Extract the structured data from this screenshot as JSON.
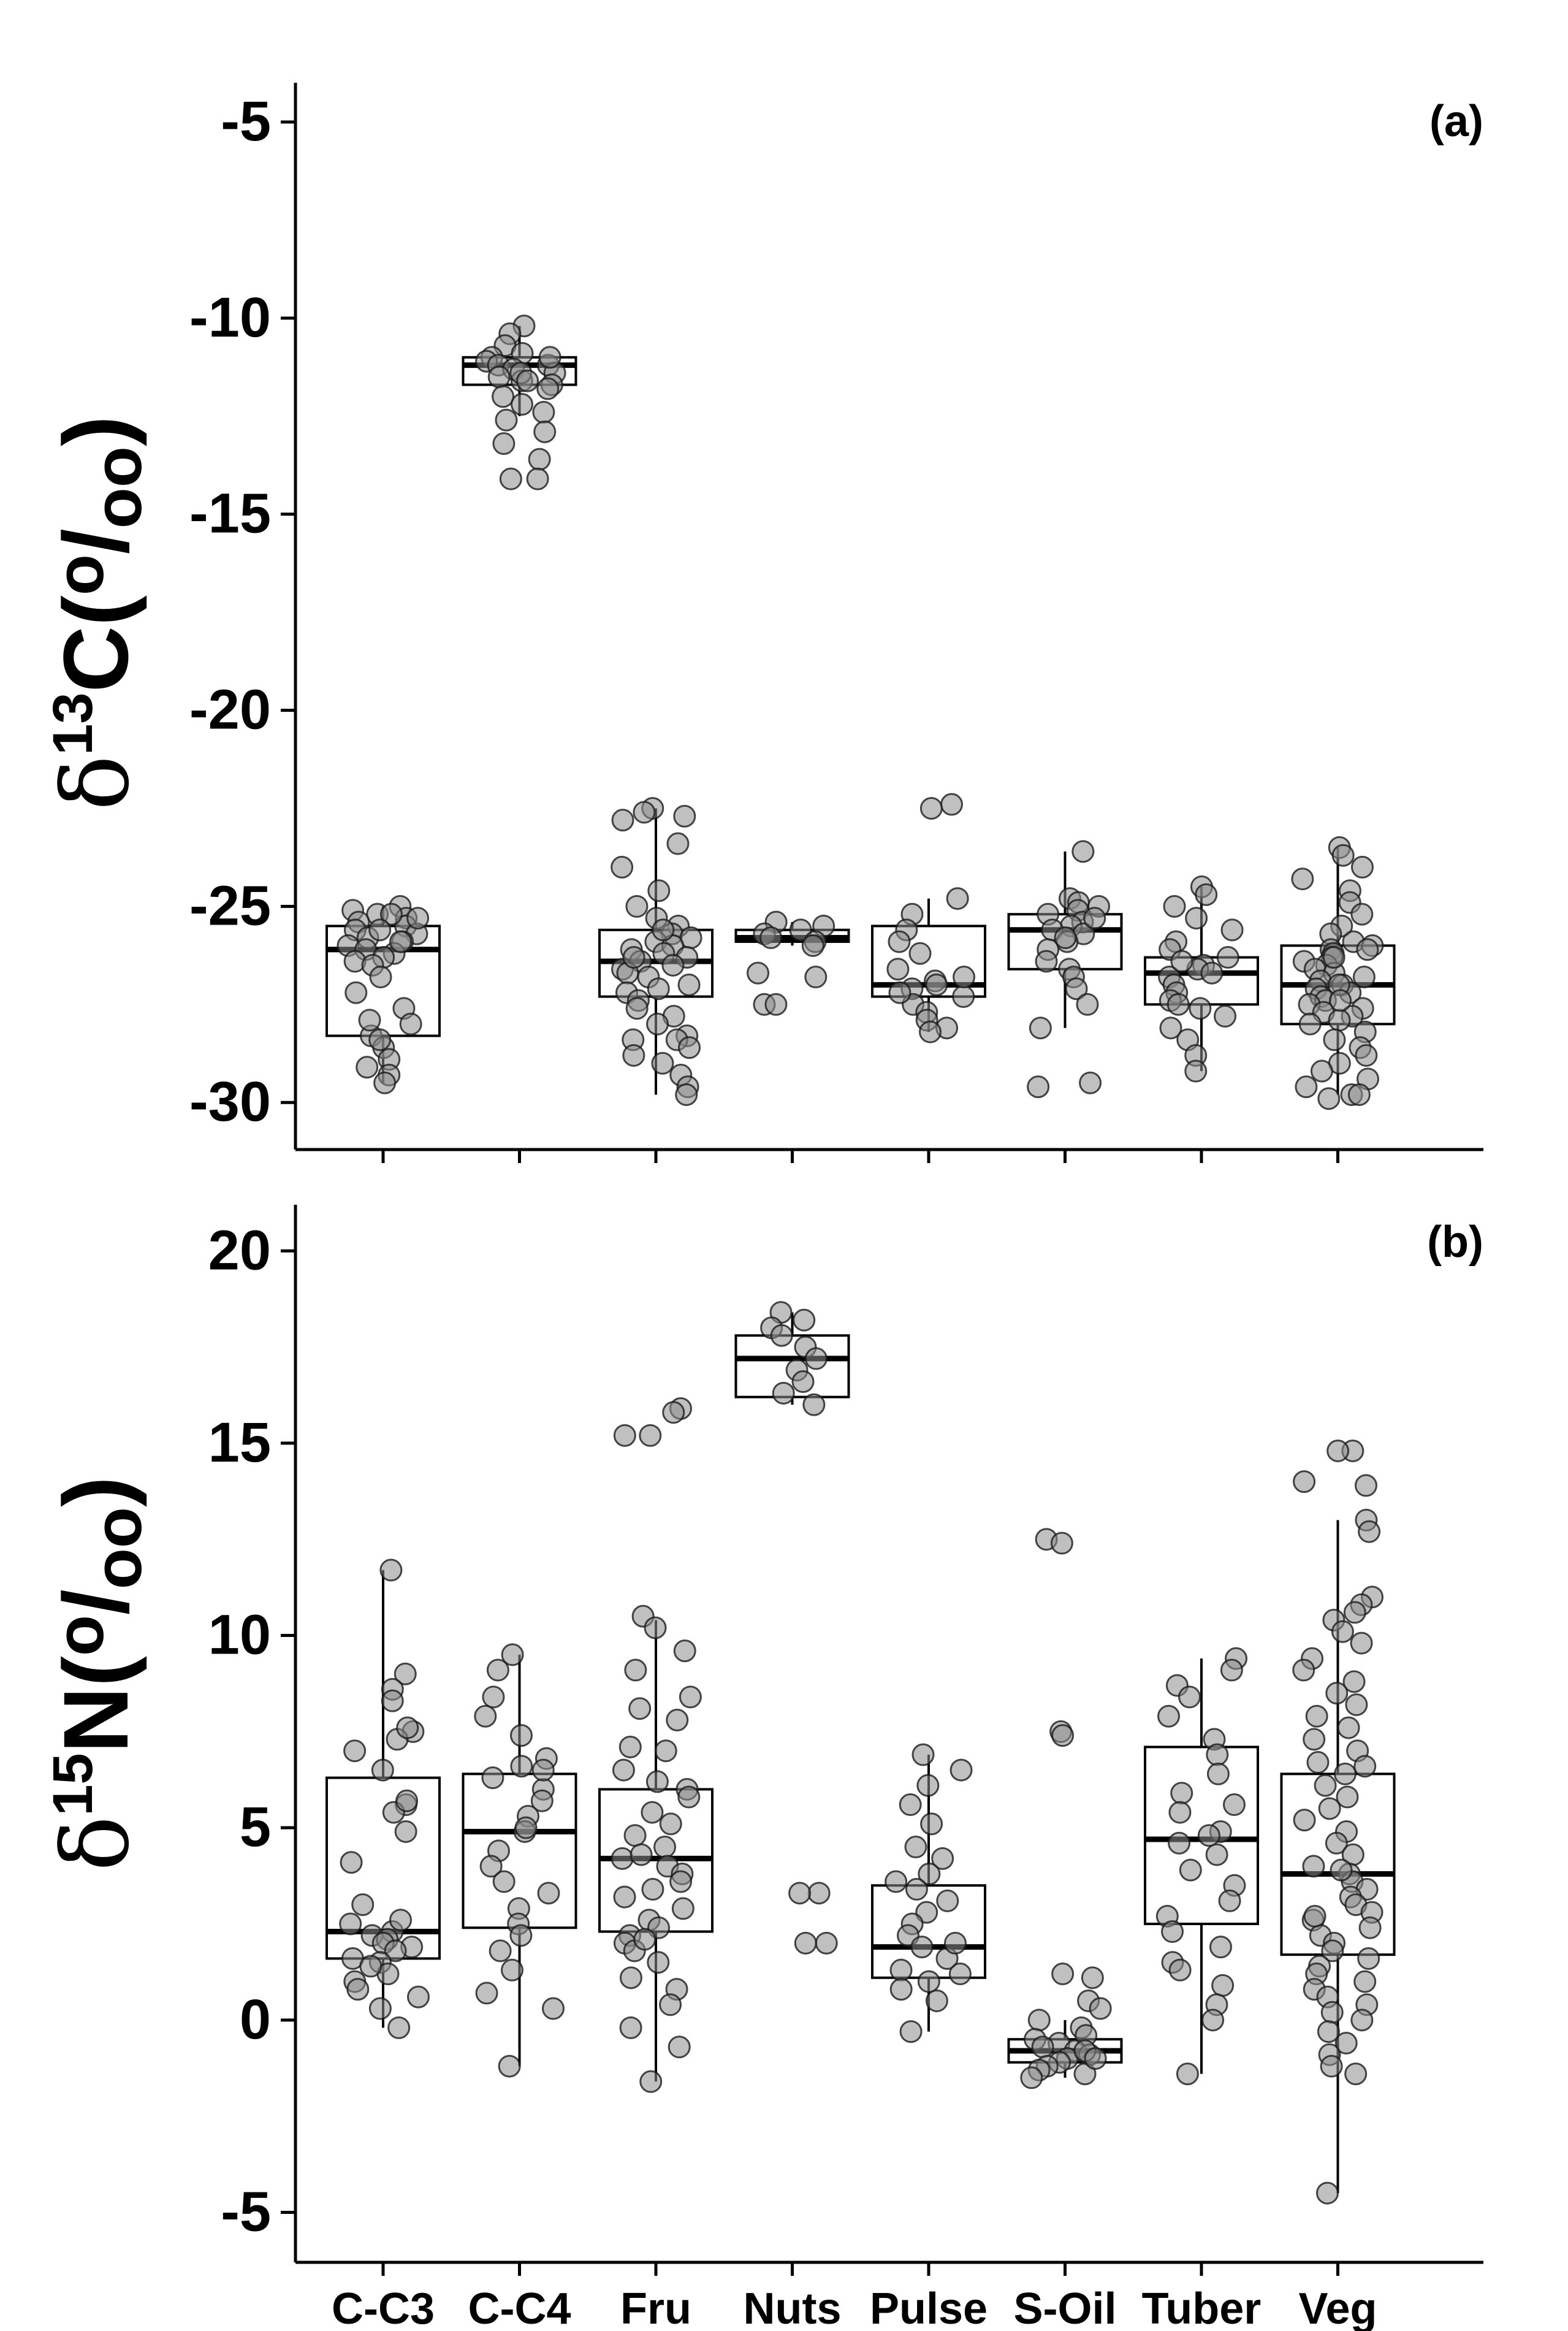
{
  "figure": {
    "categories": [
      "C-C3",
      "C-C4",
      "Fru",
      "Nuts",
      "Pulse",
      "S-Oil",
      "Tuber",
      "Veg"
    ],
    "colors": {
      "axis": "#000000",
      "box_fill": "#ffffff",
      "point_fill": "#8c8c8c",
      "point_stroke": "#1a1a1a"
    }
  },
  "chart_data": [
    {
      "type": "box",
      "panel_label": "(a)",
      "ylabel": {
        "delta": "δ",
        "sup": "13",
        "element": "C",
        "open": "(",
        "numer": "o",
        "slash": "/",
        "denom": "oo",
        "close": ")"
      },
      "xlabel": "",
      "ylim": [
        -31.2,
        -4
      ],
      "yticks": [
        -5,
        -10,
        -15,
        -20,
        -25,
        -30
      ],
      "categories": [
        "C-C3",
        "C-C4",
        "Fru",
        "Nuts",
        "Pulse",
        "S-Oil",
        "Tuber",
        "Veg"
      ],
      "boxes": [
        {
          "q1": -28.3,
          "median": -26.1,
          "q3": -25.5,
          "whisker_low": -29.5,
          "whisker_high": -25.0
        },
        {
          "q1": -11.7,
          "median": -11.2,
          "q3": -11.0,
          "whisker_low": -12.5,
          "whisker_high": -10.2
        },
        {
          "q1": -27.3,
          "median": -26.4,
          "q3": -25.6,
          "whisker_low": -29.8,
          "whisker_high": -22.5
        },
        {
          "q1": -25.9,
          "median": -25.8,
          "q3": -25.6,
          "whisker_low": -26.0,
          "whisker_high": -25.4
        },
        {
          "q1": -27.3,
          "median": -27.0,
          "q3": -25.5,
          "whisker_low": -28.2,
          "whisker_high": -24.8
        },
        {
          "q1": -26.6,
          "median": -25.6,
          "q3": -25.2,
          "whisker_low": -28.1,
          "whisker_high": -23.6
        },
        {
          "q1": -27.5,
          "median": -26.7,
          "q3": -26.3,
          "whisker_low": -29.2,
          "whisker_high": -24.5
        },
        {
          "q1": -28.0,
          "median": -27.0,
          "q3": -26.0,
          "whisker_low": -29.8,
          "whisker_high": -23.5
        }
      ],
      "points": [
        [
          -25.0,
          -25.1,
          -25.2,
          -25.3,
          -25.4,
          -25.5,
          -25.6,
          -25.7,
          -25.8,
          -25.9,
          -26.0,
          -26.1,
          -26.2,
          -26.3,
          -26.4,
          -26.5,
          -25.2,
          -25.6,
          -26.8,
          -27.2,
          -27.6,
          -28.0,
          -28.3,
          -28.6,
          -28.9,
          -29.1,
          -29.3,
          -29.5,
          -28.4,
          -27.9,
          -25.3,
          -25.9
        ],
        [
          -10.2,
          -10.4,
          -10.7,
          -10.9,
          -11.0,
          -11.1,
          -11.2,
          -11.2,
          -11.3,
          -11.4,
          -11.5,
          -11.6,
          -11.7,
          -11.8,
          -12.0,
          -12.2,
          -12.4,
          -12.6,
          -12.9,
          -13.2,
          -13.6,
          -14.1,
          -14.1,
          -11.0,
          -11.4,
          -11.6
        ],
        [
          -22.5,
          -22.6,
          -22.7,
          -22.8,
          -23.4,
          -24.0,
          -24.6,
          -25.0,
          -25.3,
          -25.5,
          -25.7,
          -25.8,
          -25.9,
          -26.0,
          -26.1,
          -26.2,
          -26.3,
          -26.4,
          -26.5,
          -26.6,
          -26.7,
          -26.8,
          -27.0,
          -27.2,
          -27.4,
          -27.6,
          -27.8,
          -28.0,
          -28.3,
          -28.4,
          -28.4,
          -28.6,
          -28.8,
          -29.0,
          -29.3,
          -29.6,
          -29.8,
          -25.6,
          -26.3,
          -27.1
        ],
        [
          -25.4,
          -25.5,
          -25.6,
          -25.7,
          -25.8,
          -25.9,
          -26.0,
          -26.7,
          -27.5,
          -27.5,
          -26.8
        ],
        [
          -22.4,
          -22.5,
          -24.8,
          -25.2,
          -25.6,
          -25.9,
          -26.2,
          -26.6,
          -26.9,
          -27.1,
          -27.3,
          -27.5,
          -27.7,
          -27.9,
          -28.1,
          -28.2,
          -26.8,
          -27.0,
          -27.2
        ],
        [
          -23.6,
          -24.8,
          -24.9,
          -25.0,
          -25.1,
          -25.2,
          -25.4,
          -25.5,
          -25.6,
          -25.7,
          -25.9,
          -26.1,
          -26.4,
          -26.6,
          -26.8,
          -27.1,
          -27.5,
          -28.1,
          -29.5,
          -29.6,
          -25.3,
          -25.8
        ],
        [
          -24.5,
          -24.7,
          -25.0,
          -25.3,
          -25.6,
          -25.9,
          -26.1,
          -26.3,
          -26.5,
          -26.6,
          -26.7,
          -26.8,
          -27.0,
          -27.2,
          -27.4,
          -27.6,
          -27.8,
          -28.1,
          -28.4,
          -28.8,
          -29.2,
          -26.4,
          -27.5
        ],
        [
          -23.5,
          -23.7,
          -24.0,
          -24.3,
          -24.6,
          -24.9,
          -25.2,
          -25.5,
          -25.7,
          -25.9,
          -26.0,
          -26.1,
          -26.2,
          -26.3,
          -26.4,
          -26.5,
          -26.6,
          -26.7,
          -26.8,
          -26.9,
          -27.0,
          -27.1,
          -27.2,
          -27.3,
          -27.4,
          -27.5,
          -27.6,
          -27.7,
          -27.8,
          -27.9,
          -28.0,
          -28.2,
          -28.4,
          -28.6,
          -28.8,
          -29.0,
          -29.2,
          -29.4,
          -29.6,
          -29.8,
          -29.8,
          -29.9,
          -26.1,
          -26.3,
          -27.0,
          -27.4
        ]
      ]
    },
    {
      "type": "box",
      "panel_label": "(b)",
      "ylabel": {
        "delta": "δ",
        "sup": "15",
        "element": "N",
        "open": "(",
        "numer": "o",
        "slash": "/",
        "denom": "oo",
        "close": ")"
      },
      "xlabel": "",
      "ylim": [
        -6.3,
        21.2
      ],
      "yticks": [
        20,
        15,
        10,
        5,
        0,
        -5
      ],
      "categories": [
        "C-C3",
        "C-C4",
        "Fru",
        "Nuts",
        "Pulse",
        "S-Oil",
        "Tuber",
        "Veg"
      ],
      "boxes": [
        {
          "q1": 1.6,
          "median": 2.3,
          "q3": 6.3,
          "whisker_low": -0.2,
          "whisker_high": 11.7
        },
        {
          "q1": 2.4,
          "median": 4.9,
          "q3": 6.4,
          "whisker_low": -1.2,
          "whisker_high": 9.5
        },
        {
          "q1": 2.3,
          "median": 4.2,
          "q3": 6.0,
          "whisker_low": -1.6,
          "whisker_high": 10.4
        },
        {
          "q1": 16.2,
          "median": 17.2,
          "q3": 17.8,
          "whisker_low": 16.0,
          "whisker_high": 18.4
        },
        {
          "q1": 1.1,
          "median": 1.9,
          "q3": 3.5,
          "whisker_low": -0.3,
          "whisker_high": 6.9
        },
        {
          "q1": -1.1,
          "median": -0.8,
          "q3": -0.5,
          "whisker_low": -1.5,
          "whisker_high": 0.0
        },
        {
          "q1": 2.5,
          "median": 4.7,
          "q3": 7.1,
          "whisker_low": -1.4,
          "whisker_high": 9.4
        },
        {
          "q1": 1.7,
          "median": 3.8,
          "q3": 6.4,
          "whisker_low": -4.5,
          "whisker_high": 13.0
        }
      ],
      "points": [
        [
          11.7,
          9.0,
          8.6,
          8.3,
          7.5,
          7.3,
          7.0,
          6.5,
          5.6,
          5.4,
          4.9,
          4.1,
          3.0,
          2.5,
          2.3,
          2.2,
          2.1,
          2.0,
          1.9,
          1.8,
          1.6,
          1.5,
          1.2,
          1.0,
          0.8,
          0.6,
          0.3,
          -0.2,
          7.6,
          5.7,
          2.6,
          1.4
        ],
        [
          9.5,
          9.1,
          8.4,
          7.9,
          7.4,
          6.8,
          6.6,
          6.3,
          6.0,
          5.7,
          5.3,
          4.9,
          4.4,
          4.0,
          3.6,
          3.3,
          2.9,
          2.5,
          2.2,
          1.8,
          1.3,
          0.7,
          0.3,
          -1.2,
          6.5,
          5.0
        ],
        [
          15.9,
          15.8,
          15.2,
          15.2,
          10.5,
          10.2,
          9.6,
          9.1,
          8.4,
          8.1,
          7.8,
          7.1,
          7.0,
          6.5,
          6.2,
          6.0,
          5.8,
          5.4,
          5.1,
          4.8,
          4.5,
          4.2,
          4.0,
          3.8,
          3.6,
          3.4,
          3.2,
          2.9,
          2.6,
          2.4,
          2.2,
          2.0,
          1.8,
          1.5,
          1.1,
          0.8,
          0.4,
          -0.2,
          -0.7,
          -1.6,
          4.3,
          2.1
        ],
        [
          18.4,
          18.2,
          18.0,
          17.8,
          17.5,
          17.2,
          16.9,
          16.6,
          16.3,
          16.0,
          3.3,
          3.3,
          2.0,
          2.0
        ],
        [
          6.9,
          6.5,
          6.1,
          5.6,
          5.1,
          4.5,
          4.2,
          3.8,
          3.4,
          3.1,
          2.8,
          2.5,
          2.2,
          1.9,
          1.6,
          1.3,
          1.0,
          0.8,
          0.5,
          -0.3,
          2.0,
          1.2,
          3.6
        ],
        [
          12.5,
          12.4,
          7.5,
          7.4,
          1.2,
          1.1,
          0.5,
          0.3,
          0.0,
          -0.2,
          -0.4,
          -0.5,
          -0.6,
          -0.7,
          -0.8,
          -0.9,
          -1.0,
          -1.1,
          -1.2,
          -1.3,
          -1.4,
          -1.5,
          -0.8,
          -1.0
        ],
        [
          9.4,
          9.1,
          8.7,
          8.4,
          7.9,
          7.3,
          6.9,
          6.4,
          5.9,
          5.4,
          4.9,
          4.6,
          4.3,
          3.9,
          3.5,
          3.1,
          2.7,
          2.3,
          1.9,
          1.5,
          1.3,
          0.9,
          0.4,
          0.0,
          -1.4,
          4.8,
          5.6
        ],
        [
          14.8,
          14.8,
          14.0,
          13.9,
          13.0,
          12.7,
          11.0,
          10.8,
          10.6,
          10.4,
          10.1,
          9.8,
          9.4,
          9.1,
          8.8,
          8.5,
          8.2,
          7.9,
          7.6,
          7.3,
          7.0,
          6.7,
          6.4,
          6.1,
          5.8,
          5.5,
          5.2,
          4.9,
          4.6,
          4.3,
          4.0,
          3.8,
          3.6,
          3.4,
          3.2,
          3.0,
          2.8,
          2.6,
          2.4,
          2.2,
          2.0,
          1.8,
          1.6,
          1.4,
          1.2,
          1.0,
          0.8,
          0.6,
          0.4,
          0.2,
          0.0,
          -0.3,
          -0.6,
          -0.9,
          -1.2,
          -1.4,
          -4.5,
          3.9,
          2.7,
          6.6
        ]
      ]
    }
  ]
}
